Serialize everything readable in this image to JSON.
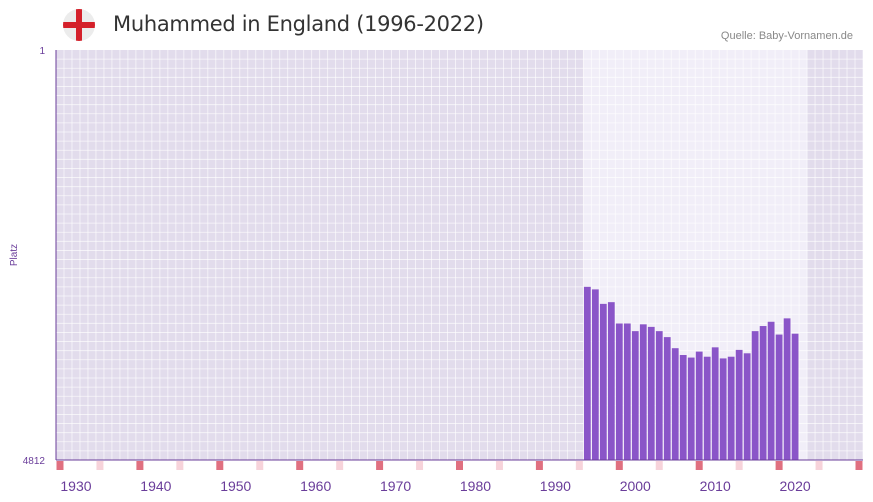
{
  "header": {
    "title": "Muhammed in England (1996-2022)",
    "source": "Quelle: Baby-Vornamen.de",
    "flag": "england-flag-icon"
  },
  "colors": {
    "bar": "#8a55c8",
    "plot_bg": "#e2dcec",
    "highlight_bg": "#f1eef8",
    "axis": "#6a3d9a",
    "decade_marker": "#e07080",
    "mid_marker": "#f7d3da",
    "flag_red": "#d4202a"
  },
  "chart_data": {
    "type": "bar",
    "title": "Muhammed in England (1996-2022)",
    "ylabel": "Platz",
    "y_reversed": true,
    "ylim": [
      1,
      4812
    ],
    "ytick_labels": [
      "1",
      "4812"
    ],
    "xlim": [
      1928,
      2029
    ],
    "xtick_labels": [
      "1930",
      "1940",
      "1950",
      "1960",
      "1970",
      "1980",
      "1990",
      "2000",
      "2010",
      "2020"
    ],
    "highlight_range": [
      1994,
      2021
    ],
    "x": [
      1994,
      1995,
      1996,
      1997,
      1998,
      1999,
      2000,
      2001,
      2002,
      2003,
      2004,
      2005,
      2006,
      2007,
      2008,
      2009,
      2010,
      2011,
      2012,
      2013,
      2014,
      2015,
      2016,
      2017,
      2018,
      2019,
      2020
    ],
    "values": [
      2780,
      2810,
      2980,
      2960,
      3210,
      3210,
      3300,
      3220,
      3250,
      3300,
      3370,
      3500,
      3580,
      3610,
      3540,
      3600,
      3490,
      3620,
      3600,
      3520,
      3560,
      3300,
      3240,
      3190,
      3340,
      3150,
      3330
    ]
  }
}
